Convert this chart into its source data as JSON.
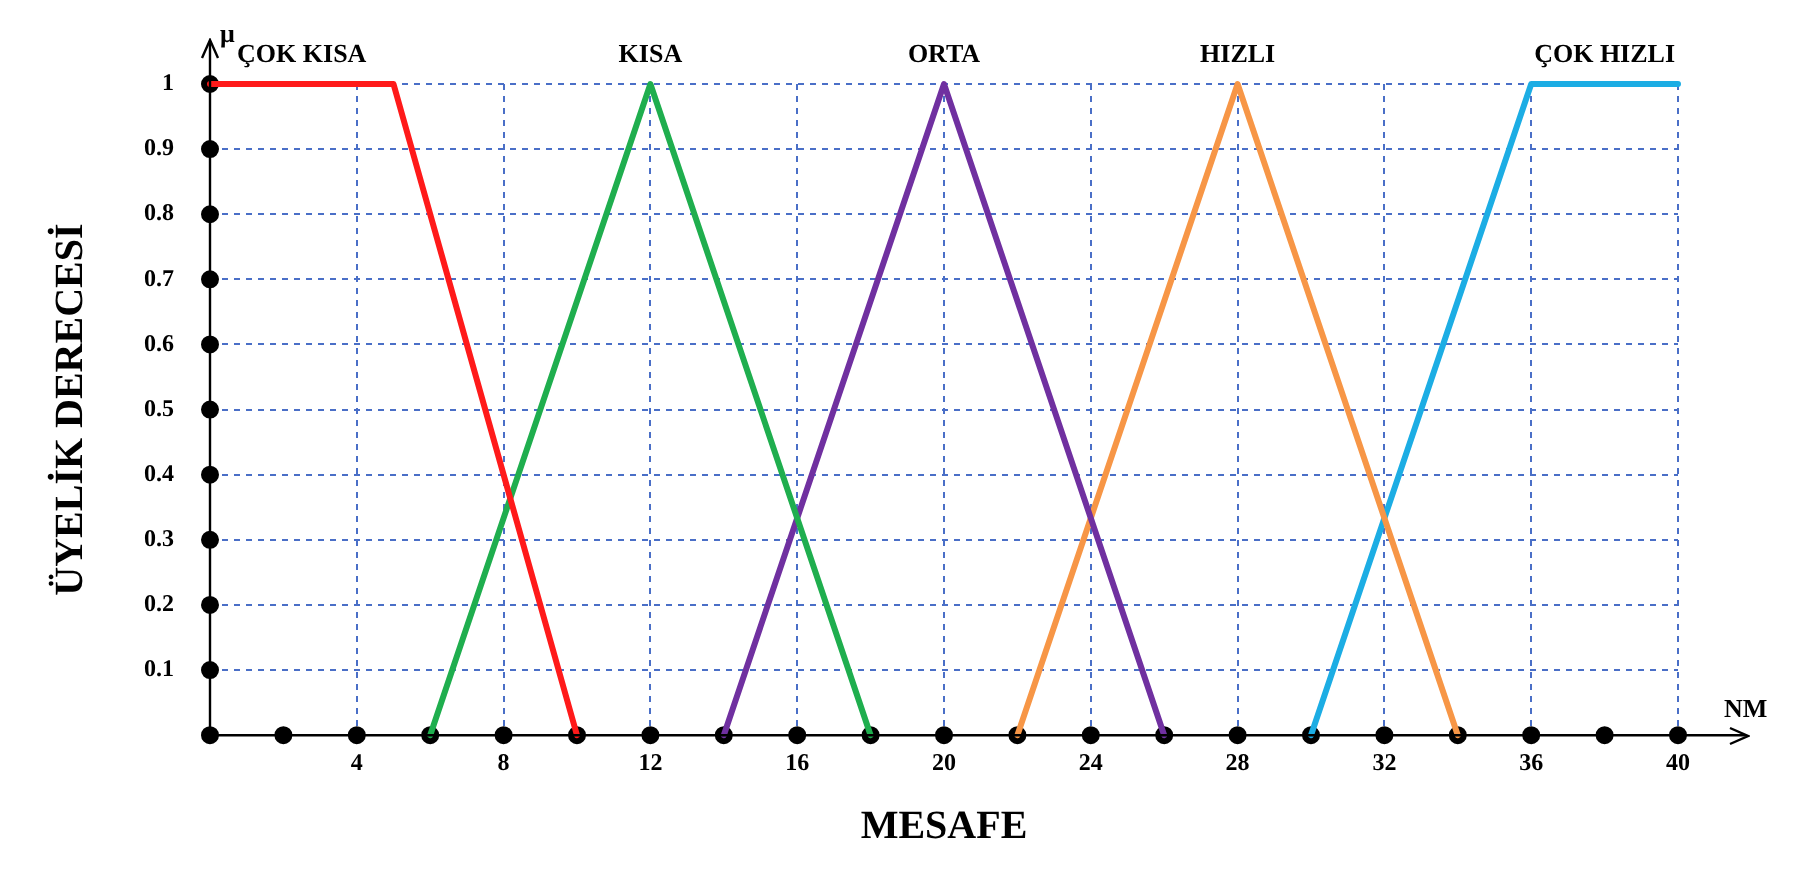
{
  "chart_data": {
    "type": "line",
    "xlabel": "MESAFE",
    "ylabel": "ÜYELİK DERECESİ",
    "annotations": [
      "μ",
      "NM"
    ],
    "xlim": [
      0,
      40
    ],
    "ylim": [
      0,
      1
    ],
    "xticks": [
      {
        "value": 0,
        "label": null
      },
      {
        "value": 2,
        "label": null
      },
      4,
      {
        "value": 6,
        "label": null
      },
      8,
      {
        "value": 10,
        "label": null
      },
      12,
      {
        "value": 14,
        "label": null
      },
      16,
      {
        "value": 18,
        "label": null
      },
      20,
      {
        "value": 22,
        "label": null
      },
      24,
      {
        "value": 26,
        "label": null
      },
      28,
      {
        "value": 30,
        "label": null
      },
      32,
      {
        "value": 34,
        "label": null
      },
      36,
      {
        "value": 38,
        "label": null
      },
      40
    ],
    "yticks": [
      {
        "value": 0,
        "label": null
      },
      0.1,
      0.2,
      0.3,
      0.4,
      0.5,
      0.6,
      0.7,
      0.8,
      0.9,
      1
    ],
    "grid": true,
    "marker": "none",
    "line_style": "solid",
    "series": [
      {
        "name": "ÇOK KISA",
        "color": "#ff1a1a",
        "x": [
          0,
          5,
          10
        ],
        "values": [
          1,
          1,
          0
        ]
      },
      {
        "name": "KISA",
        "color": "#1fae4e",
        "x": [
          6,
          12,
          18
        ],
        "values": [
          0,
          1,
          0
        ]
      },
      {
        "name": "ORTA",
        "color": "#7030a0",
        "x": [
          14,
          20,
          26
        ],
        "values": [
          0,
          1,
          0
        ]
      },
      {
        "name": "HIZLI",
        "color": "#f79646",
        "x": [
          22,
          28,
          34
        ],
        "values": [
          0,
          1,
          0
        ]
      },
      {
        "name": "ÇOK HIZLI",
        "color": "#1cade4",
        "x": [
          30,
          36,
          40
        ],
        "values": [
          0,
          1,
          1
        ]
      },
      {
        "type": "scatter",
        "marker": "circle",
        "color": "#000000",
        "x": [
          0,
          2,
          4,
          6,
          8,
          10,
          12,
          14,
          16,
          18,
          20,
          22,
          24,
          26,
          28,
          30,
          32,
          34,
          36,
          38,
          40
        ],
        "values": [
          0,
          0,
          0,
          0,
          0,
          0,
          0,
          0,
          0,
          0,
          0,
          0,
          0,
          0,
          0,
          0,
          0,
          0,
          0,
          0,
          0
        ]
      },
      {
        "type": "scatter",
        "marker": "circle",
        "color": "#000000",
        "x": [
          0,
          0,
          0,
          0,
          0,
          0,
          0,
          0,
          0,
          0
        ],
        "values": [
          0.1,
          0.2,
          0.3,
          0.4,
          0.5,
          0.6,
          0.7,
          0.8,
          0.9,
          1
        ]
      }
    ]
  }
}
